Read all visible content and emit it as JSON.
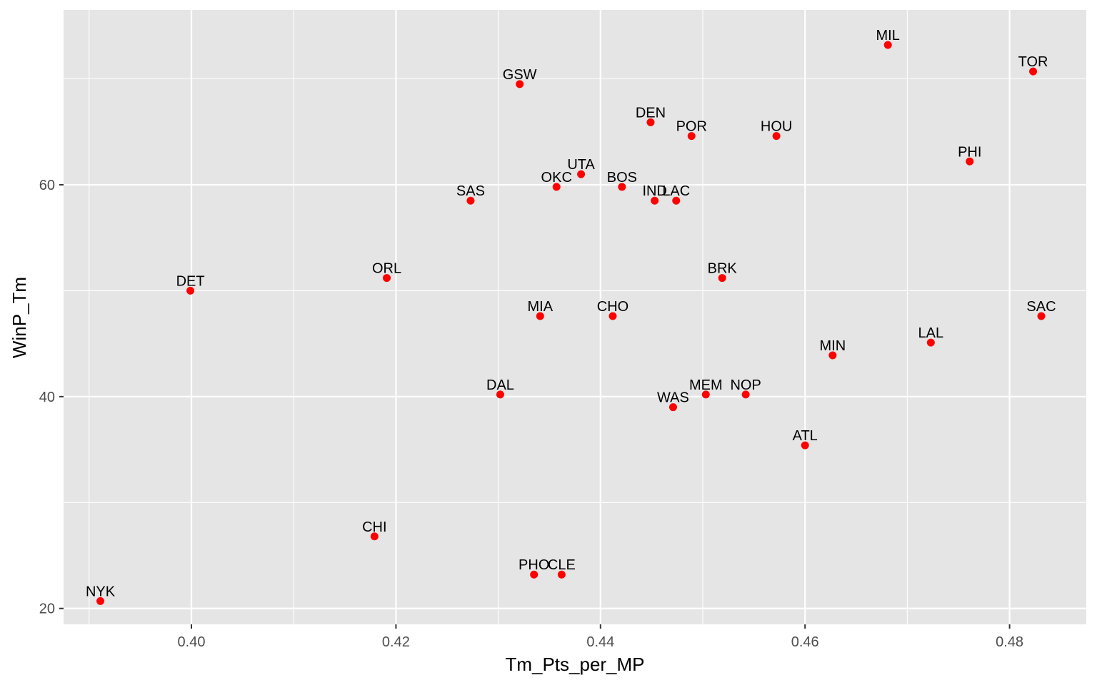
{
  "chart_data": {
    "type": "scatter",
    "xlabel": "Tm_Pts_per_MP",
    "ylabel": "WinP_Tm",
    "xlim": [
      0.3875,
      0.4875
    ],
    "ylim": [
      18.5,
      76.5
    ],
    "x_major_ticks": [
      0.4,
      0.42,
      0.44,
      0.46,
      0.48
    ],
    "x_tick_labels": [
      "0.40",
      "0.42",
      "0.44",
      "0.46",
      "0.48"
    ],
    "x_minor_ticks": [
      0.39,
      0.41,
      0.43,
      0.45,
      0.47
    ],
    "y_major_ticks": [
      20,
      40,
      60
    ],
    "y_tick_labels": [
      "20",
      "40",
      "60"
    ],
    "y_minor_ticks": [
      30,
      50,
      70
    ],
    "grid": true,
    "panel_color": "#e5e5e5",
    "grid_color": "#ffffff",
    "point_color": "#ff0000",
    "points": [
      {
        "label": "MIL",
        "x": 0.4681,
        "y": 73.2
      },
      {
        "label": "TOR",
        "x": 0.4823,
        "y": 70.7
      },
      {
        "label": "GSW",
        "x": 0.4321,
        "y": 69.5
      },
      {
        "label": "DEN",
        "x": 0.4449,
        "y": 65.9
      },
      {
        "label": "POR",
        "x": 0.4489,
        "y": 64.6
      },
      {
        "label": "HOU",
        "x": 0.4572,
        "y": 64.6
      },
      {
        "label": "PHI",
        "x": 0.4761,
        "y": 62.2
      },
      {
        "label": "UTA",
        "x": 0.4381,
        "y": 61.0
      },
      {
        "label": "OKC",
        "x": 0.4357,
        "y": 59.8
      },
      {
        "label": "BOS",
        "x": 0.4421,
        "y": 59.8
      },
      {
        "label": "SAS",
        "x": 0.4273,
        "y": 58.5
      },
      {
        "label": "IND",
        "x": 0.4453,
        "y": 58.5
      },
      {
        "label": "LAC",
        "x": 0.4474,
        "y": 58.5
      },
      {
        "label": "ORL",
        "x": 0.4191,
        "y": 51.2
      },
      {
        "label": "BRK",
        "x": 0.4519,
        "y": 51.2
      },
      {
        "label": "DET",
        "x": 0.3999,
        "y": 50.0
      },
      {
        "label": "MIA",
        "x": 0.4341,
        "y": 47.6
      },
      {
        "label": "CHO",
        "x": 0.4412,
        "y": 47.6
      },
      {
        "label": "SAC",
        "x": 0.4831,
        "y": 47.6
      },
      {
        "label": "LAL",
        "x": 0.4723,
        "y": 45.1
      },
      {
        "label": "MIN",
        "x": 0.4627,
        "y": 43.9
      },
      {
        "label": "DAL",
        "x": 0.4302,
        "y": 40.2
      },
      {
        "label": "MEM",
        "x": 0.4503,
        "y": 40.2
      },
      {
        "label": "NOP",
        "x": 0.4542,
        "y": 40.2
      },
      {
        "label": "WAS",
        "x": 0.4471,
        "y": 39.0
      },
      {
        "label": "ATL",
        "x": 0.46,
        "y": 35.4
      },
      {
        "label": "CHI",
        "x": 0.4179,
        "y": 26.8
      },
      {
        "label": "PHO",
        "x": 0.4335,
        "y": 23.2
      },
      {
        "label": "CLE",
        "x": 0.4362,
        "y": 23.2
      },
      {
        "label": "NYK",
        "x": 0.3911,
        "y": 20.7
      }
    ]
  }
}
